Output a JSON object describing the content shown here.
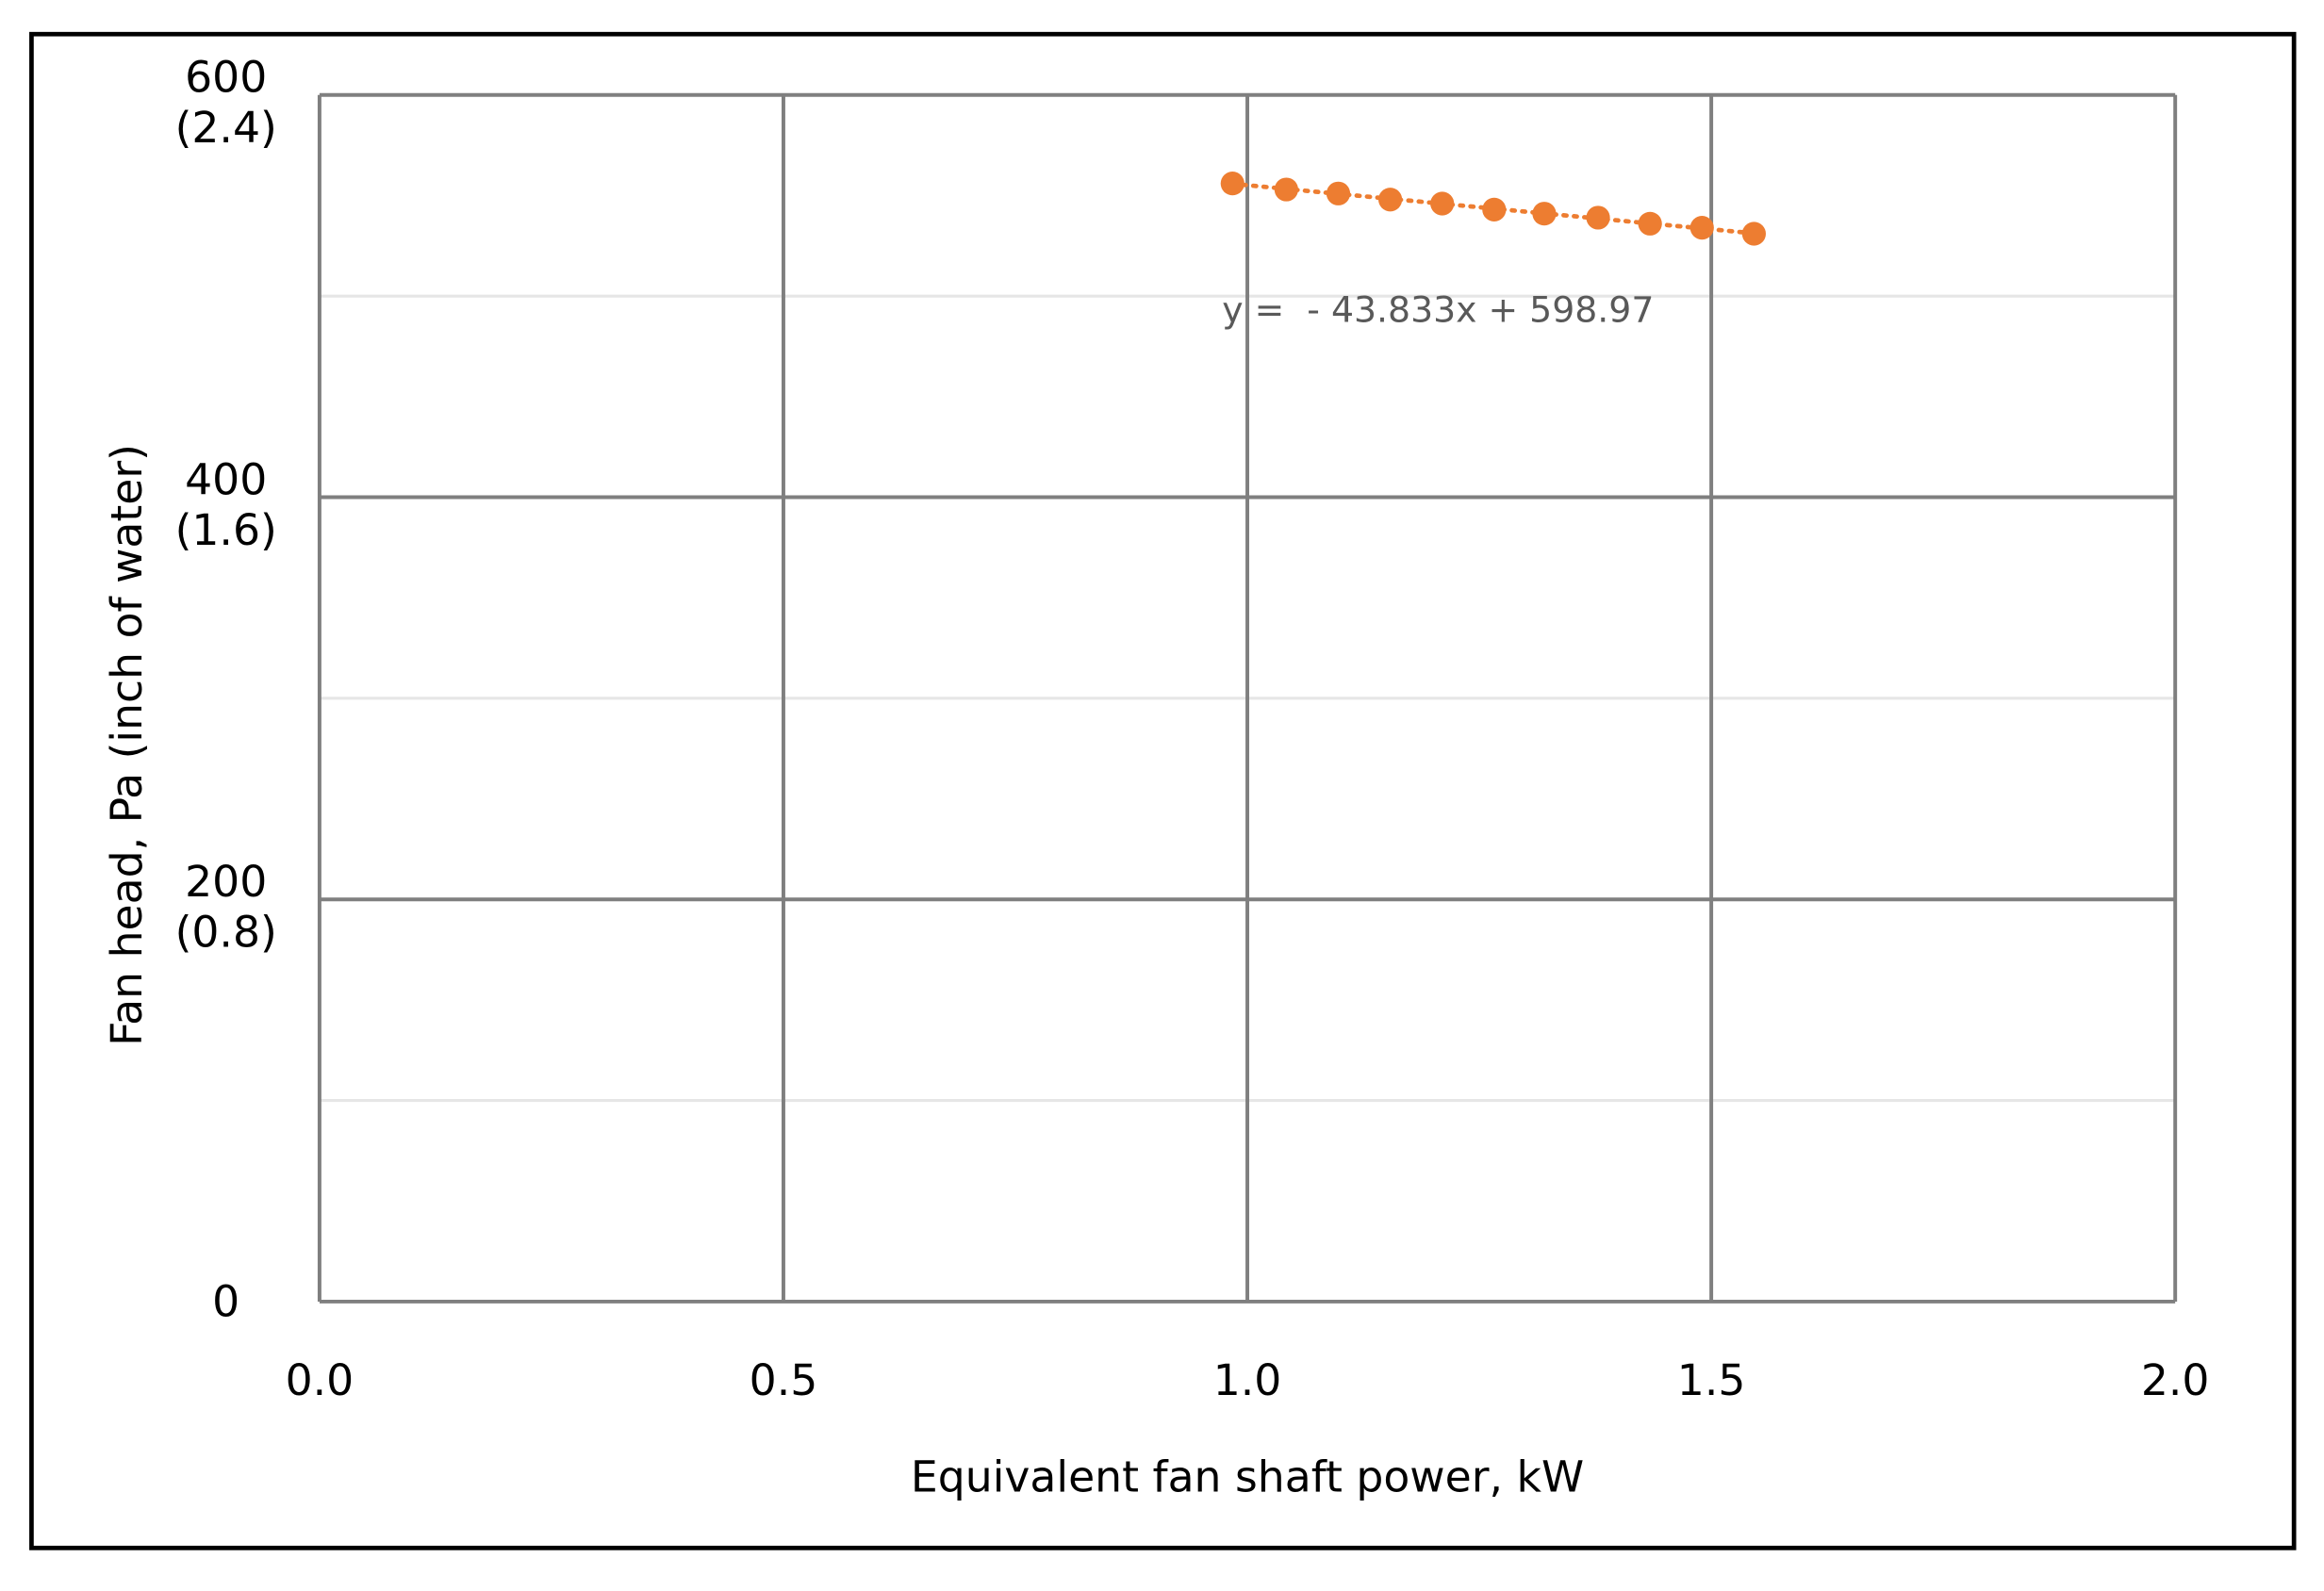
{
  "chart_data": {
    "type": "scatter",
    "x_label": "Equivalent fan shaft power, kW",
    "y_label": "Fan head, Pa (inch of water)",
    "x": [
      0.984,
      1.042,
      1.098,
      1.154,
      1.21,
      1.266,
      1.32,
      1.378,
      1.434,
      1.49,
      1.546
    ],
    "series": [
      {
        "name": "Fan head",
        "color": "#ed7d31",
        "values": [
          556,
          553,
          551,
          548,
          546,
          543,
          541,
          539,
          536,
          534,
          531
        ]
      }
    ],
    "trendline": {
      "slope": -43.833,
      "intercept": 598.97,
      "label": "y =  - 43.833x + 598.97",
      "color": "#ed7d31"
    },
    "xlim": [
      0,
      2
    ],
    "ylim": [
      0,
      600
    ],
    "xticks": [
      {
        "value": 0,
        "label": "0.0"
      },
      0.5,
      {
        "value": 1,
        "label": "1.0"
      },
      1.5,
      {
        "value": 2,
        "label": "2.0"
      }
    ],
    "yticks": [
      0,
      {
        "value": 200,
        "label": "200\n(0.8)"
      },
      {
        "value": 400,
        "label": "400\n(1.6)"
      },
      {
        "value": 600,
        "label": "600\n(2.4)"
      }
    ],
    "minor_yticks": [
      100,
      300,
      500
    ],
    "grid": true
  }
}
